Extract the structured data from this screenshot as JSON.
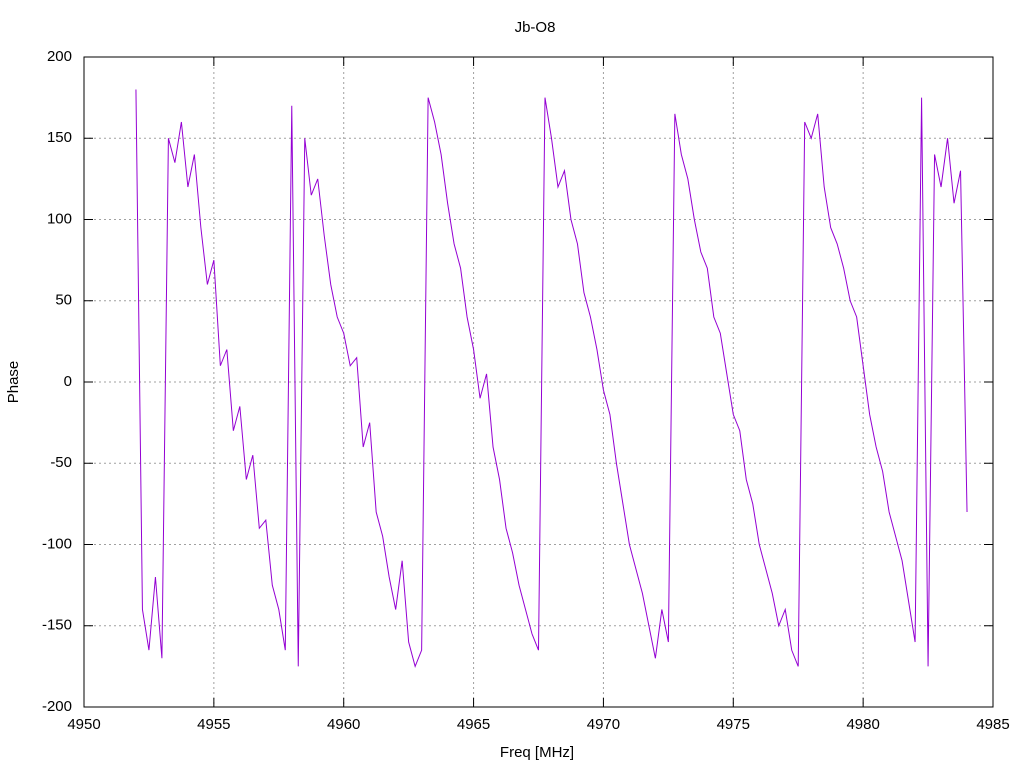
{
  "chart_data": {
    "type": "line",
    "title": "Jb-O8",
    "x_label": "Freq [MHz]",
    "y_label": "Phase",
    "x": [
      4952,
      4952.25,
      4952.5,
      4952.75,
      4953,
      4953.25,
      4953.5,
      4953.75,
      4954,
      4954.25,
      4954.5,
      4954.75,
      4955,
      4955.25,
      4955.5,
      4955.75,
      4956,
      4956.25,
      4956.5,
      4956.75,
      4957,
      4957.25,
      4957.5,
      4957.75,
      4958,
      4958.25,
      4958.5,
      4958.75,
      4959,
      4959.25,
      4959.5,
      4959.75,
      4960,
      4960.25,
      4960.5,
      4960.75,
      4961,
      4961.25,
      4961.5,
      4961.75,
      4962,
      4962.25,
      4962.5,
      4962.75,
      4963,
      4963.25,
      4963.5,
      4963.75,
      4964,
      4964.25,
      4964.5,
      4964.75,
      4965,
      4965.25,
      4965.5,
      4965.75,
      4966,
      4966.25,
      4966.5,
      4966.75,
      4967,
      4967.25,
      4967.5,
      4967.75,
      4968,
      4968.25,
      4968.5,
      4968.75,
      4969,
      4969.25,
      4969.5,
      4969.75,
      4970,
      4970.25,
      4970.5,
      4970.75,
      4971,
      4971.25,
      4971.5,
      4971.75,
      4972,
      4972.25,
      4972.5,
      4972.75,
      4973,
      4973.25,
      4973.5,
      4973.75,
      4974,
      4974.25,
      4974.5,
      4974.75,
      4975,
      4975.25,
      4975.5,
      4975.75,
      4976,
      4976.25,
      4976.5,
      4976.75,
      4977,
      4977.25,
      4977.5,
      4977.75,
      4978,
      4978.25,
      4978.5,
      4978.75,
      4979,
      4979.25,
      4979.5,
      4979.75,
      4980,
      4980.25,
      4980.5,
      4980.75,
      4981,
      4981.25,
      4981.5,
      4981.75,
      4982,
      4982.25,
      4982.5,
      4982.75,
      4983,
      4983.25,
      4983.5,
      4983.75,
      4984
    ],
    "series": [
      {
        "color": "#9400d3",
        "values": [
          180,
          -140,
          -165,
          -120,
          -170,
          150,
          135,
          160,
          120,
          140,
          95,
          60,
          75,
          10,
          20,
          -30,
          -15,
          -60,
          -45,
          -90,
          -85,
          -125,
          -140,
          -165,
          170,
          -175,
          150,
          115,
          125,
          90,
          60,
          40,
          30,
          10,
          15,
          -40,
          -25,
          -80,
          -95,
          -120,
          -140,
          -110,
          -160,
          -175,
          -165,
          175,
          160,
          140,
          110,
          85,
          70,
          40,
          20,
          -10,
          5,
          -40,
          -60,
          -90,
          -105,
          -125,
          -140,
          -155,
          -165,
          175,
          150,
          120,
          130,
          100,
          85,
          55,
          40,
          20,
          -5,
          -20,
          -50,
          -75,
          -100,
          -115,
          -130,
          -150,
          -170,
          -140,
          -160,
          165,
          140,
          125,
          100,
          80,
          70,
          40,
          30,
          5,
          -20,
          -30,
          -60,
          -75,
          -100,
          -115,
          -130,
          -150,
          -140,
          -165,
          -175,
          160,
          150,
          165,
          120,
          95,
          85,
          70,
          50,
          40,
          10,
          -20,
          -40,
          -55,
          -80,
          -95,
          -110,
          -135,
          -160,
          175,
          -175,
          140,
          120,
          150,
          110,
          130,
          -80
        ]
      }
    ],
    "xlim": [
      4950,
      4985
    ],
    "xticks": [
      4950,
      4955,
      4960,
      4965,
      4970,
      4975,
      4980,
      4985
    ],
    "ylim": [
      -200,
      200
    ],
    "yticks": [
      -200,
      -150,
      -100,
      -50,
      0,
      50,
      100,
      150,
      200
    ],
    "grid": true
  }
}
